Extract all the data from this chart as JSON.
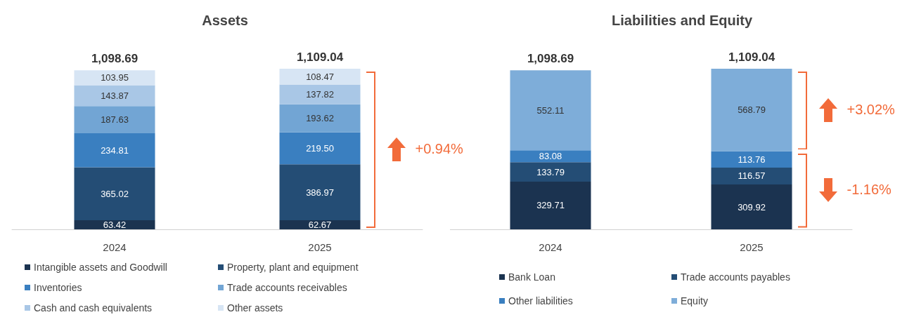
{
  "chart_data": [
    {
      "type": "bar",
      "title": "Assets",
      "categories": [
        "2024",
        "2025"
      ],
      "stacked": true,
      "legend": "bottom",
      "series": [
        {
          "name": "Intangible assets and Goodwill",
          "color": "#1b3350",
          "values": [
            63.42,
            62.67
          ],
          "value_labels": [
            "63.42",
            "62.67"
          ]
        },
        {
          "name": "Property, plant and equipment",
          "color": "#244d75",
          "values": [
            365.02,
            386.97
          ],
          "value_labels": [
            "365.02",
            "386.97"
          ]
        },
        {
          "name": "Inventories",
          "color": "#3a7fc0",
          "values": [
            234.81,
            219.5
          ],
          "value_labels": [
            "234.81",
            "219.50"
          ]
        },
        {
          "name": "Trade accounts receivables",
          "color": "#72a5d4",
          "values": [
            187.63,
            193.62
          ],
          "value_labels": [
            "187.63",
            "193.62"
          ]
        },
        {
          "name": "Cash and cash equivalents",
          "color": "#a9c7e6",
          "values": [
            143.87,
            137.82
          ],
          "value_labels": [
            "143.87",
            "137.82"
          ]
        },
        {
          "name": "Other assets",
          "color": "#d7e5f4",
          "values": [
            103.95,
            108.47
          ],
          "value_labels": [
            "103.95",
            "108.47"
          ]
        }
      ],
      "totals": [
        "1,098.69",
        "1,109.04"
      ],
      "annotations": [
        "+0.94%"
      ]
    },
    {
      "type": "bar",
      "title": "Liabilities and Equity",
      "categories": [
        "2024",
        "2025"
      ],
      "stacked": true,
      "legend": "bottom",
      "series": [
        {
          "name": "Bank Loan",
          "color": "#1b3350",
          "values": [
            329.71,
            309.92
          ],
          "value_labels": [
            "329.71",
            "309.92"
          ]
        },
        {
          "name": "Trade accounts payables",
          "color": "#244d75",
          "values": [
            133.79,
            116.57
          ],
          "value_labels": [
            "133.79",
            "116.57"
          ]
        },
        {
          "name": "Other liabilities",
          "color": "#3a7fc0",
          "values": [
            83.08,
            113.76
          ],
          "value_labels": [
            "83.08",
            "113.76"
          ]
        },
        {
          "name": "Equity",
          "color": "#7eadd9",
          "values": [
            552.11,
            568.79
          ],
          "value_labels": [
            "552.11",
            "568.79"
          ]
        }
      ],
      "totals": [
        "1,098.69",
        "1,109.04"
      ],
      "annotations": [
        "+3.02%",
        "-1.16%"
      ]
    }
  ]
}
